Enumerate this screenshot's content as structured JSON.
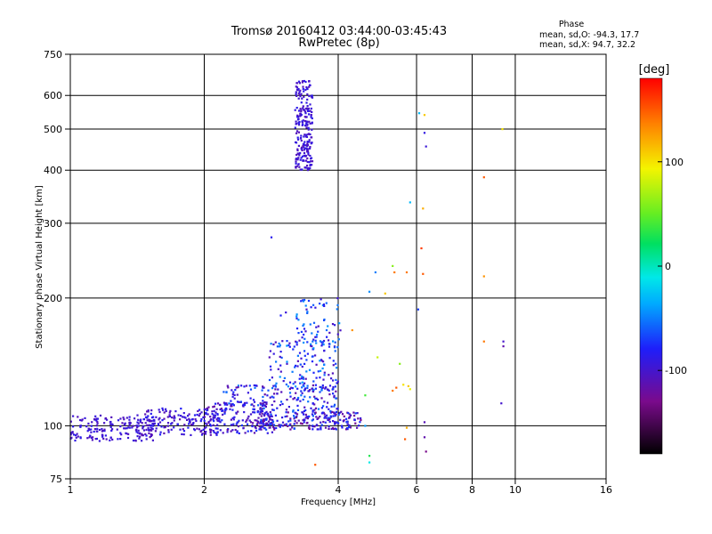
{
  "chart_data": {
    "type": "scatter",
    "title": "Tromsø 20160412 03:44:00-03:45:43",
    "subtitle": "RwPretec (8p)",
    "xlabel": "Frequency [MHz]",
    "ylabel": "Stationary phase Virtual Height [km]",
    "x_scale": "log2",
    "y_scale": "log",
    "xlim": [
      1,
      16
    ],
    "ylim": [
      75,
      750
    ],
    "x_ticks": [
      1,
      2,
      4,
      6,
      8,
      10,
      16
    ],
    "x_tick_labels": [
      "1",
      "2",
      "4",
      "6",
      "8",
      "10",
      "16"
    ],
    "y_ticks": [
      75,
      100,
      200,
      300,
      400,
      500,
      600,
      750
    ],
    "y_tick_labels": [
      "75",
      "100",
      "200",
      "300",
      "400",
      "500",
      "600",
      "750"
    ],
    "grid": true,
    "info": {
      "heading": "Phase",
      "line1": "mean, sd,O: -94.3, 17.7",
      "line2": "mean, sd,X:  94.7, 32.2"
    },
    "colorbar": {
      "label": "[deg]",
      "range": [
        -180,
        180
      ],
      "ticks": [
        100,
        0,
        -100
      ],
      "tick_labels": [
        "100",
        "0",
        "-100"
      ]
    },
    "clusters": [
      {
        "f": [
          1.0,
          1.55
        ],
        "h": [
          92,
          106
        ],
        "phase": [
          -110,
          -85
        ],
        "n": 180
      },
      {
        "f": [
          1.45,
          2.2
        ],
        "h": [
          95,
          110
        ],
        "phase": [
          -115,
          -80
        ],
        "n": 160
      },
      {
        "f": [
          2.0,
          2.9
        ],
        "h": [
          96,
          114
        ],
        "phase": [
          -120,
          -70
        ],
        "n": 170
      },
      {
        "f": [
          2.6,
          4.5
        ],
        "h": [
          98,
          108
        ],
        "phase": [
          -130,
          -60
        ],
        "n": 220
      },
      {
        "f": [
          2.2,
          4.0
        ],
        "h": [
          108,
          125
        ],
        "phase": [
          -120,
          -50
        ],
        "n": 160
      },
      {
        "f": [
          2.8,
          4.0
        ],
        "h": [
          120,
          160
        ],
        "phase": [
          -110,
          -40
        ],
        "n": 140
      },
      {
        "f": [
          3.2,
          4.1
        ],
        "h": [
          150,
          200
        ],
        "phase": [
          -110,
          -40
        ],
        "n": 70
      },
      {
        "f": [
          3.2,
          3.5
        ],
        "h": [
          400,
          650
        ],
        "phase": [
          -110,
          -85
        ],
        "n": 230
      }
    ],
    "points": [
      {
        "f": 2.83,
        "h": 278,
        "phase": -85
      },
      {
        "f": 2.97,
        "h": 182,
        "phase": -80
      },
      {
        "f": 3.05,
        "h": 185,
        "phase": -95
      },
      {
        "f": 4.7,
        "h": 207,
        "phase": -45
      },
      {
        "f": 4.85,
        "h": 230,
        "phase": -50
      },
      {
        "f": 5.1,
        "h": 205,
        "phase": 110
      },
      {
        "f": 5.3,
        "h": 238,
        "phase": 60
      },
      {
        "f": 5.35,
        "h": 230,
        "phase": 140
      },
      {
        "f": 5.7,
        "h": 230,
        "phase": 140
      },
      {
        "f": 5.8,
        "h": 336,
        "phase": -30
      },
      {
        "f": 6.08,
        "h": 545,
        "phase": -30
      },
      {
        "f": 6.25,
        "h": 540,
        "phase": 110
      },
      {
        "f": 6.2,
        "h": 325,
        "phase": 120
      },
      {
        "f": 6.15,
        "h": 262,
        "phase": 160
      },
      {
        "f": 6.2,
        "h": 228,
        "phase": 150
      },
      {
        "f": 6.25,
        "h": 490,
        "phase": -90
      },
      {
        "f": 6.3,
        "h": 455,
        "phase": -95
      },
      {
        "f": 6.05,
        "h": 188,
        "phase": -70
      },
      {
        "f": 6.25,
        "h": 102,
        "phase": -110
      },
      {
        "f": 6.25,
        "h": 94,
        "phase": -115
      },
      {
        "f": 6.3,
        "h": 87,
        "phase": -130
      },
      {
        "f": 8.5,
        "h": 385,
        "phase": 150
      },
      {
        "f": 8.5,
        "h": 225,
        "phase": 130
      },
      {
        "f": 8.5,
        "h": 158,
        "phase": 140
      },
      {
        "f": 9.35,
        "h": 500,
        "phase": 100
      },
      {
        "f": 9.4,
        "h": 158,
        "phase": -100
      },
      {
        "f": 9.4,
        "h": 154,
        "phase": -115
      },
      {
        "f": 9.3,
        "h": 113,
        "phase": -100
      },
      {
        "f": 3.55,
        "h": 81,
        "phase": 150
      },
      {
        "f": 4.6,
        "h": 100,
        "phase": -40
      },
      {
        "f": 4.7,
        "h": 85,
        "phase": 30
      },
      {
        "f": 4.7,
        "h": 82,
        "phase": -10
      },
      {
        "f": 5.7,
        "h": 99,
        "phase": 120
      },
      {
        "f": 5.65,
        "h": 93,
        "phase": 150
      },
      {
        "f": 5.75,
        "h": 124,
        "phase": 110
      },
      {
        "f": 5.8,
        "h": 122,
        "phase": 90
      },
      {
        "f": 5.3,
        "h": 121,
        "phase": 140
      },
      {
        "f": 5.4,
        "h": 123,
        "phase": 150
      },
      {
        "f": 4.9,
        "h": 145,
        "phase": 80
      },
      {
        "f": 4.3,
        "h": 168,
        "phase": 130
      },
      {
        "f": 4.6,
        "h": 118,
        "phase": 40
      },
      {
        "f": 5.5,
        "h": 140,
        "phase": 60
      },
      {
        "f": 5.6,
        "h": 125,
        "phase": 100
      }
    ]
  }
}
